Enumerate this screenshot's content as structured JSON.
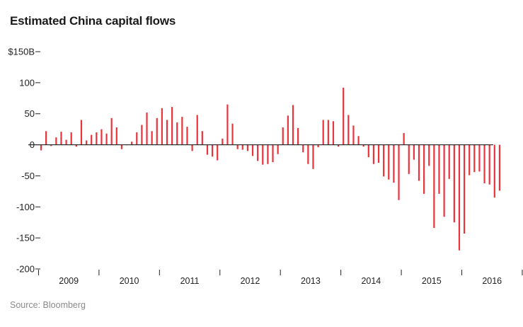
{
  "header": {
    "title": "Estimated China capital flows"
  },
  "footer": {
    "source": "Source: Bloomberg"
  },
  "chart_data": {
    "type": "bar",
    "title": "Estimated China capital flows",
    "xlabel": "",
    "ylabel": "",
    "ylim": [
      -200,
      150
    ],
    "y_ticks": [
      150,
      100,
      50,
      0,
      -50,
      -100,
      -150,
      -200
    ],
    "y_tick_labels": [
      "$150B",
      "100",
      "50",
      "0",
      "-50",
      "-100",
      "-150",
      "-200"
    ],
    "x_start": "2009-01",
    "x_labels": [
      "2009",
      "2010",
      "2011",
      "2012",
      "2013",
      "2014",
      "2015",
      "2016"
    ],
    "color": "#e8343c",
    "source": "Source: Bloomberg",
    "values": [
      -9,
      22,
      -2,
      12,
      21,
      8,
      20,
      -3,
      40,
      7,
      16,
      20,
      25,
      18,
      43,
      28,
      -7,
      0,
      5,
      20,
      32,
      52,
      22,
      43,
      59,
      40,
      61,
      36,
      45,
      29,
      -10,
      48,
      22,
      -16,
      -19,
      -25,
      10,
      65,
      34,
      -7,
      -8,
      -10,
      -18,
      -26,
      -32,
      -31,
      -28,
      -15,
      28,
      47,
      64,
      27,
      -12,
      -31,
      -39,
      -4,
      40,
      40,
      38,
      -3,
      92,
      48,
      31,
      14,
      -3,
      -20,
      -31,
      -29,
      -51,
      -56,
      -61,
      -89,
      19,
      -47,
      -24,
      -58,
      -79,
      -34,
      -134,
      -79,
      -116,
      -55,
      -125,
      -170,
      -143,
      -49,
      -44,
      -43,
      -62,
      -64,
      -85,
      -74
    ]
  }
}
